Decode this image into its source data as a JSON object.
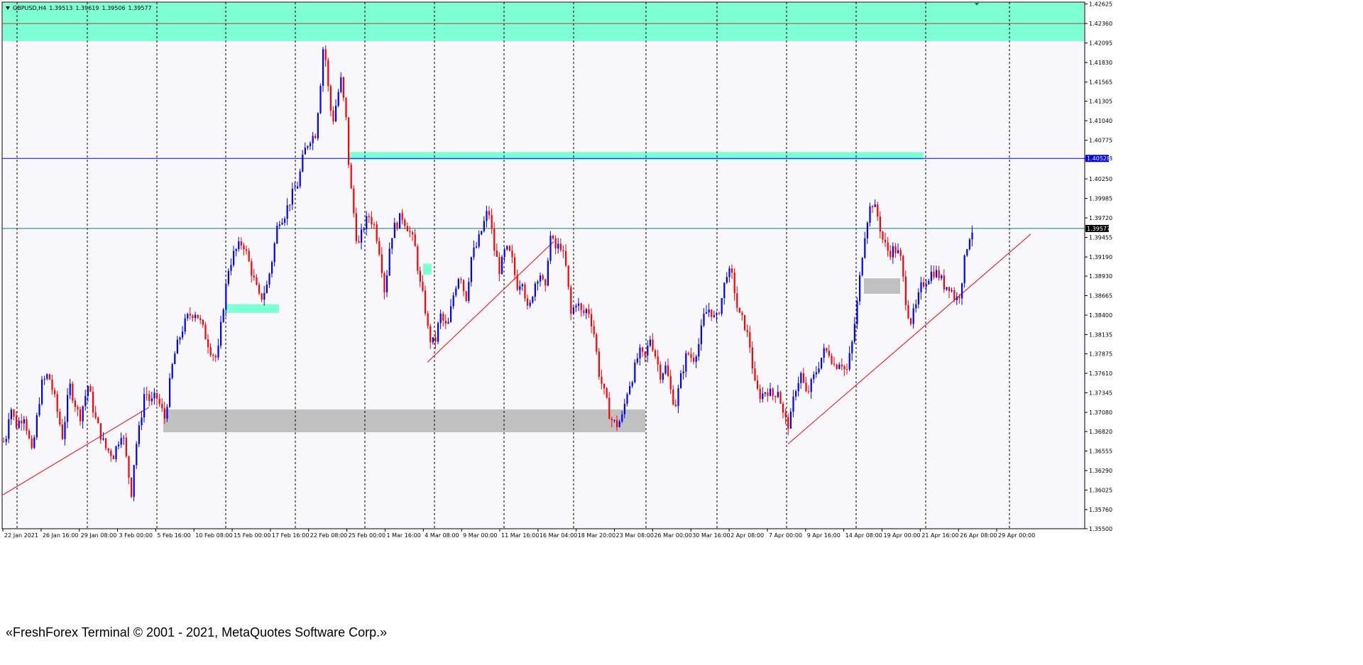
{
  "header": {
    "symbol_tf": "GBPUSD,H4",
    "open": "1.39513",
    "high": "1.39619",
    "low": "1.39506",
    "close": "1.39577"
  },
  "copyright": "«FreshForex Terminal © 2001 - 2021, MetaQuotes Software Corp.»",
  "colors": {
    "background": "#f8f8fc",
    "grid": "#000000",
    "bull": "#0000ff",
    "bear": "#ff0000",
    "zone_green": "#7fffd4",
    "zone_gray": "#c0c0c0",
    "hline_blue": "#0000ff",
    "hline_teal": "#008080",
    "trend": "#ff0000"
  },
  "chart_data": {
    "type": "candlestick",
    "symbol": "GBPUSD",
    "timeframe": "H4",
    "y_range": [
      1.355,
      1.4265
    ],
    "y_ticks": [
      "1.42625",
      "1.42360",
      "1.42095",
      "1.41830",
      "1.41565",
      "1.41305",
      "1.41040",
      "1.40775",
      "1.40528",
      "1.40250",
      "1.39985",
      "1.39720",
      "1.39577",
      "1.39455",
      "1.39190",
      "1.38930",
      "1.38665",
      "1.38400",
      "1.38135",
      "1.37875",
      "1.37610",
      "1.37345",
      "1.37080",
      "1.36820",
      "1.36555",
      "1.36290",
      "1.36025",
      "1.35760",
      "1.35500"
    ],
    "price_labels": [
      {
        "value": "1.40528",
        "kind": "hline_blue"
      },
      {
        "value": "1.39577",
        "kind": "current"
      }
    ],
    "x_labels": [
      "22 Jan 2021",
      "26 Jan 16:00",
      "29 Jan 08:00",
      "3 Feb 00:00",
      "5 Feb 16:00",
      "10 Feb 08:00",
      "15 Feb 00:00",
      "17 Feb 16:00",
      "22 Feb 08:00",
      "25 Feb 00:00",
      "1 Mar 16:00",
      "4 Mar 08:00",
      "9 Mar 00:00",
      "11 Mar 16:00",
      "16 Mar 04:00",
      "18 Mar 20:00",
      "23 Mar 08:00",
      "26 Mar 00:00",
      "30 Mar 16:00",
      "2 Apr 08:00",
      "7 Apr 00:00",
      "9 Apr 16:00",
      "14 Apr 08:00",
      "19 Apr 00:00",
      "21 Apr 16:00",
      "26 Apr 08:00",
      "29 Apr 00:00"
    ],
    "price_path": [
      [
        0,
        1.3735
      ],
      [
        6,
        1.3655
      ],
      [
        14,
        1.372
      ],
      [
        22,
        1.369
      ],
      [
        34,
        1.3705
      ],
      [
        45,
        1.365
      ],
      [
        58,
        1.3745
      ],
      [
        68,
        1.376
      ],
      [
        76,
        1.373
      ],
      [
        88,
        1.3675
      ],
      [
        98,
        1.3745
      ],
      [
        112,
        1.37
      ],
      [
        124,
        1.3745
      ],
      [
        134,
        1.37
      ],
      [
        148,
        1.366
      ],
      [
        160,
        1.365
      ],
      [
        172,
        1.3685
      ],
      [
        180,
        1.363
      ],
      [
        185,
        1.36
      ],
      [
        190,
        1.3655
      ],
      [
        197,
        1.369
      ],
      [
        204,
        1.374
      ],
      [
        212,
        1.372
      ],
      [
        220,
        1.373
      ],
      [
        232,
        1.37
      ],
      [
        244,
        1.378
      ],
      [
        256,
        1.382
      ],
      [
        266,
        1.384
      ],
      [
        276,
        1.3845
      ],
      [
        288,
        1.3815
      ],
      [
        298,
        1.379
      ],
      [
        306,
        1.378
      ],
      [
        314,
        1.385
      ],
      [
        322,
        1.3905
      ],
      [
        330,
        1.3925
      ],
      [
        342,
        1.394
      ],
      [
        354,
        1.39
      ],
      [
        366,
        1.386
      ],
      [
        376,
        1.388
      ],
      [
        384,
        1.392
      ],
      [
        392,
        1.397
      ],
      [
        400,
        1.3975
      ],
      [
        410,
        1.4
      ],
      [
        420,
        1.402
      ],
      [
        428,
        1.406
      ],
      [
        436,
        1.408
      ],
      [
        444,
        1.4085
      ],
      [
        450,
        1.414
      ],
      [
        456,
        1.4215
      ],
      [
        462,
        1.415
      ],
      [
        468,
        1.41
      ],
      [
        474,
        1.413
      ],
      [
        480,
        1.416
      ],
      [
        488,
        1.41
      ],
      [
        492,
        1.403
      ],
      [
        498,
        1.398
      ],
      [
        504,
        1.393
      ],
      [
        512,
        1.396
      ],
      [
        520,
        1.3975
      ],
      [
        528,
        1.396
      ],
      [
        536,
        1.392
      ],
      [
        542,
        1.387
      ],
      [
        550,
        1.3945
      ],
      [
        556,
        1.396
      ],
      [
        566,
        1.3975
      ],
      [
        574,
        1.396
      ],
      [
        584,
        1.3935
      ],
      [
        592,
        1.388
      ],
      [
        598,
        1.3855
      ],
      [
        604,
        1.381
      ],
      [
        612,
        1.38
      ],
      [
        620,
        1.384
      ],
      [
        630,
        1.382
      ],
      [
        640,
        1.3875
      ],
      [
        648,
        1.39
      ],
      [
        656,
        1.386
      ],
      [
        664,
        1.392
      ],
      [
        672,
        1.3935
      ],
      [
        680,
        1.396
      ],
      [
        688,
        1.3985
      ],
      [
        696,
        1.393
      ],
      [
        704,
        1.39
      ],
      [
        712,
        1.393
      ],
      [
        720,
        1.392
      ],
      [
        728,
        1.388
      ],
      [
        736,
        1.389
      ],
      [
        744,
        1.384
      ],
      [
        752,
        1.388
      ],
      [
        760,
        1.39
      ],
      [
        768,
        1.387
      ],
      [
        774,
        1.395
      ],
      [
        782,
        1.393
      ],
      [
        790,
        1.3935
      ],
      [
        798,
        1.39
      ],
      [
        804,
        1.384
      ],
      [
        812,
        1.386
      ],
      [
        820,
        1.384
      ],
      [
        828,
        1.385
      ],
      [
        836,
        1.382
      ],
      [
        844,
        1.376
      ],
      [
        852,
        1.373
      ],
      [
        860,
        1.37
      ],
      [
        868,
        1.369
      ],
      [
        876,
        1.37
      ],
      [
        884,
        1.374
      ],
      [
        892,
        1.376
      ],
      [
        900,
        1.379
      ],
      [
        908,
        1.378
      ],
      [
        916,
        1.381
      ],
      [
        922,
        1.379
      ],
      [
        930,
        1.376
      ],
      [
        938,
        1.377
      ],
      [
        946,
        1.373
      ],
      [
        952,
        1.372
      ],
      [
        960,
        1.376
      ],
      [
        968,
        1.379
      ],
      [
        976,
        1.378
      ],
      [
        984,
        1.38
      ],
      [
        992,
        1.384
      ],
      [
        1000,
        1.385
      ],
      [
        1008,
        1.383
      ],
      [
        1016,
        1.386
      ],
      [
        1024,
        1.39
      ],
      [
        1032,
        1.389
      ],
      [
        1040,
        1.384
      ],
      [
        1048,
        1.383
      ],
      [
        1056,
        1.38
      ],
      [
        1064,
        1.374
      ],
      [
        1072,
        1.373
      ],
      [
        1080,
        1.374
      ],
      [
        1088,
        1.373
      ],
      [
        1096,
        1.374
      ],
      [
        1104,
        1.37
      ],
      [
        1112,
        1.369
      ],
      [
        1120,
        1.374
      ],
      [
        1128,
        1.376
      ],
      [
        1136,
        1.373
      ],
      [
        1144,
        1.375
      ],
      [
        1152,
        1.377
      ],
      [
        1160,
        1.379
      ],
      [
        1168,
        1.379
      ],
      [
        1176,
        1.377
      ],
      [
        1184,
        1.378
      ],
      [
        1192,
        1.376
      ],
      [
        1200,
        1.38
      ],
      [
        1208,
        1.386
      ],
      [
        1214,
        1.392
      ],
      [
        1220,
        1.3965
      ],
      [
        1228,
        1.3995
      ],
      [
        1236,
        1.3975
      ],
      [
        1244,
        1.394
      ],
      [
        1252,
        1.3925
      ],
      [
        1260,
        1.393
      ],
      [
        1268,
        1.392
      ],
      [
        1276,
        1.386
      ],
      [
        1282,
        1.383
      ],
      [
        1290,
        1.385
      ],
      [
        1298,
        1.388
      ],
      [
        1306,
        1.389
      ],
      [
        1314,
        1.39
      ],
      [
        1322,
        1.3895
      ],
      [
        1330,
        1.388
      ],
      [
        1338,
        1.388
      ],
      [
        1346,
        1.386
      ],
      [
        1352,
        1.387
      ],
      [
        1358,
        1.391
      ],
      [
        1364,
        1.3945
      ],
      [
        1370,
        1.3957
      ]
    ]
  }
}
